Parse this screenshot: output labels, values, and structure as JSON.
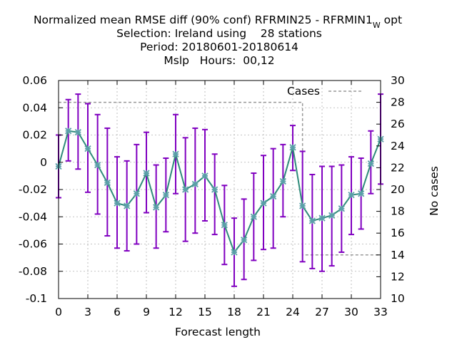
{
  "chart_data": {
    "type": "line",
    "title_lines": [
      "Normalized mean RMSE diff (90% conf) RFRMIN25 - RFRMIN1",
      "Selection: Ireland using    28 stations",
      "Period: 20180601-20180614",
      "Mslp   Hours:  00,12"
    ],
    "title_subscript": "W",
    "title_suffix": " opt",
    "xlabel": "Forecast length",
    "ylabel_right": "No cases",
    "xlim": [
      0,
      33
    ],
    "ylim": [
      -0.1,
      0.06
    ],
    "y2lim": [
      10,
      30
    ],
    "x_ticks": [
      0,
      3,
      6,
      9,
      12,
      15,
      18,
      21,
      24,
      27,
      30,
      33
    ],
    "y_ticks": [
      -0.1,
      -0.08,
      -0.06,
      -0.04,
      -0.02,
      0,
      0.02,
      0.04,
      0.06
    ],
    "y_tick_labels": [
      "-0.1",
      "-0.08",
      "-0.06",
      "-0.04",
      "-0.02",
      "0",
      "0.02",
      "0.04",
      "0.06"
    ],
    "y2_ticks": [
      10,
      12,
      14,
      16,
      18,
      20,
      22,
      24,
      26,
      28,
      30
    ],
    "grid": true,
    "legend": {
      "position": "top-right",
      "label": "Cases"
    },
    "colors": {
      "line": "#2e8b7a",
      "marker": "#5a9fa8",
      "errorbar": "#8000c0",
      "cases": "#999999"
    },
    "series": [
      {
        "x": [
          0,
          1,
          2,
          3,
          4,
          5,
          6,
          7,
          8,
          9,
          10,
          11,
          12,
          13,
          14,
          15,
          16,
          17,
          18,
          19,
          20,
          21,
          22,
          23,
          24,
          25,
          26,
          27,
          28,
          29,
          30,
          31,
          32,
          33
        ],
        "values": [
          -0.003,
          0.023,
          0.022,
          0.01,
          -0.002,
          -0.015,
          -0.03,
          -0.032,
          -0.023,
          -0.008,
          -0.033,
          -0.024,
          0.006,
          -0.02,
          -0.016,
          -0.01,
          -0.02,
          -0.046,
          -0.066,
          -0.057,
          -0.04,
          -0.03,
          -0.025,
          -0.014,
          0.011,
          -0.032,
          -0.043,
          -0.041,
          -0.039,
          -0.034,
          -0.024,
          -0.023,
          -0.001,
          0.017
        ],
        "lower": [
          -0.026,
          0.001,
          -0.005,
          -0.022,
          -0.038,
          -0.054,
          -0.063,
          -0.065,
          -0.06,
          -0.037,
          -0.063,
          -0.051,
          -0.023,
          -0.058,
          -0.052,
          -0.043,
          -0.053,
          -0.075,
          -0.091,
          -0.086,
          -0.072,
          -0.064,
          -0.063,
          -0.04,
          -0.006,
          -0.073,
          -0.078,
          -0.08,
          -0.076,
          -0.066,
          -0.053,
          -0.049,
          -0.023,
          -0.016
        ],
        "upper": [
          0.02,
          0.046,
          0.05,
          0.043,
          0.035,
          0.025,
          0.004,
          0.001,
          0.013,
          0.022,
          -0.002,
          0.003,
          0.035,
          0.018,
          0.025,
          0.024,
          0.006,
          -0.017,
          -0.041,
          -0.027,
          -0.008,
          0.005,
          0.01,
          0.013,
          0.027,
          0.008,
          -0.009,
          -0.003,
          -0.003,
          -0.002,
          0.004,
          0.003,
          0.023,
          0.05
        ]
      }
    ],
    "cases": {
      "x": [
        0,
        1,
        2,
        3,
        4,
        5,
        6,
        7,
        8,
        9,
        10,
        11,
        12,
        13,
        14,
        15,
        16,
        17,
        18,
        19,
        20,
        21,
        22,
        23,
        24,
        25,
        26,
        27,
        28,
        29,
        30,
        31,
        32,
        33
      ],
      "values": [
        28,
        28,
        28,
        28,
        28,
        28,
        28,
        28,
        28,
        28,
        28,
        28,
        28,
        28,
        28,
        28,
        28,
        28,
        28,
        28,
        28,
        28,
        28,
        28,
        28,
        14,
        14,
        14,
        14,
        14,
        14,
        14,
        14,
        14
      ]
    }
  }
}
